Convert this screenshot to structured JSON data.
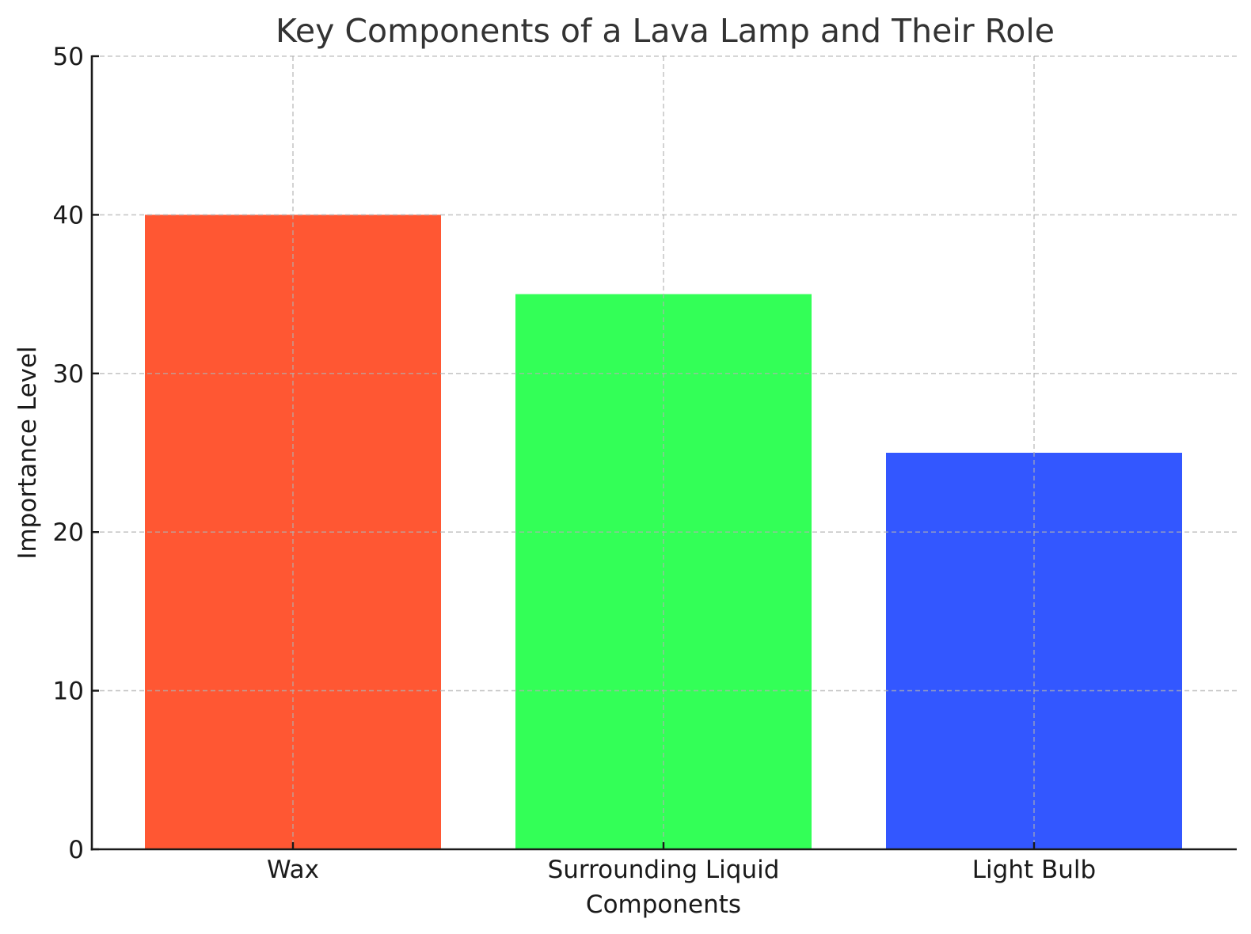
{
  "chart_data": {
    "type": "bar",
    "title": "Key Components of a Lava Lamp and Their Role",
    "xlabel": "Components",
    "ylabel": "Importance Level",
    "categories": [
      "Wax",
      "Surrounding Liquid",
      "Light Bulb"
    ],
    "values": [
      40,
      35,
      25
    ],
    "colors": [
      "#FF5733",
      "#33FF57",
      "#3357FF"
    ],
    "ylim": [
      0,
      50
    ],
    "yticks": [
      0,
      10,
      20,
      30,
      40,
      50
    ],
    "grid": true,
    "legend": null
  }
}
